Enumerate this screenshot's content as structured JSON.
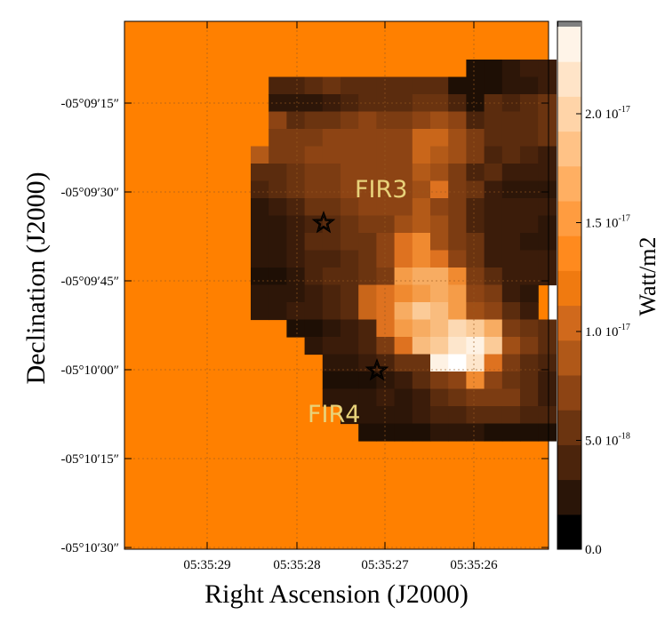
{
  "chart_data": {
    "type": "heatmap",
    "title": "",
    "xlabel": "Right Ascension (J2000)",
    "ylabel": "Declination (J2000)",
    "x_ticks": [
      "05:35:29",
      "05:35:28",
      "05:35:27",
      "05:35:26"
    ],
    "y_ticks": [
      "-05°09′15″",
      "-05°09′30″",
      "-05°09′45″",
      "-05°10′00″",
      "-05°10′15″",
      "-05°10′30″"
    ],
    "grid": true,
    "colorbar": {
      "label": "Watt/m2",
      "range": [
        0.0,
        2.4e-17
      ],
      "tick_labels": [
        "0.0",
        "5.0 10",
        "1.0 10",
        "1.5 10",
        "2.0 10"
      ],
      "tick_exponents": [
        "",
        "-18",
        "-17",
        "-17",
        "-17"
      ],
      "tick_values": [
        0.0,
        5e-18,
        1e-17,
        1.5e-17,
        2e-17
      ]
    },
    "background_value": 1.3e-17,
    "rows": [
      "............................................",
      "............................................",
      "......................00122.................",
      "...........3345444444000112.................",
      "...........1112344455304345545..............",
      "...........7455676678734445555..............",
      "...........66677777AA864445555..............",
      "..........966777777A9863432233..............",
      "..........4456677779863422222...............",
      "..........3456677778B652111112..............",
      "..........1235567779763222211...............",
      "..........1123456689863222110...............",
      "..........11244557BC8652211334..............",
      "..........11233457BCB75222211...............",
      "..........00134456DEEC642221................",
      "..........111234ABCDED7621....................",
      "..........112234ABEGFD8742....................",
      "............00123BDEFHGE6542......................",
      ".............12236BFGIJG8641..................",
      "..............112355JKIB6433................",
      "..............00012467C754221...............",
      "..............1112124566642211..............",
      "...............1111233444331................",
      "................000011100000................",
      "................................................",
      "............................................",
      "............................................"
    ],
    "annotations": [
      {
        "text": "FIR3",
        "ra": "05:35:27.0",
        "dec": "-05°09′30″"
      },
      {
        "text": "FIR4",
        "ra": "05:35:27.5",
        "dec": "-05°10′05″"
      }
    ],
    "markers": [
      {
        "ra": "05:35:27.8",
        "dec": "-05°09′37″"
      },
      {
        "ra": "05:35:26.9",
        "dec": "-05°10′00″"
      }
    ]
  }
}
